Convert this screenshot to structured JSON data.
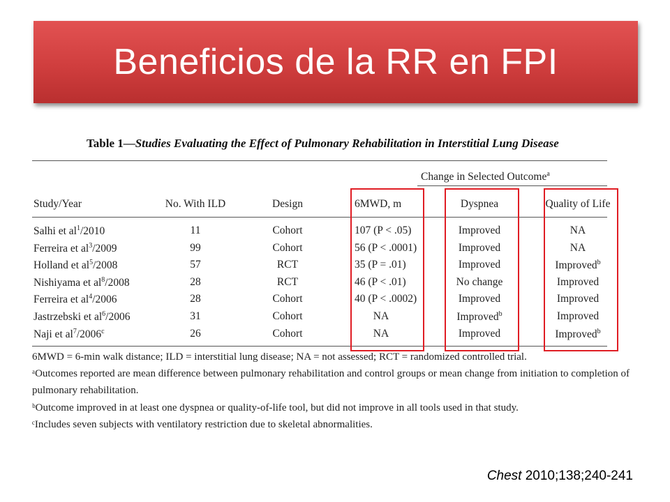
{
  "slide": {
    "title": "Beneficios de la RR en FPI",
    "accent_color": "#d43f3f",
    "highlight_color": "#e01d24"
  },
  "table": {
    "caption_prefix": "Table 1—",
    "caption_title": "Studies Evaluating the Effect of Pulmonary Rehabilitation in Interstitial Lung Disease",
    "group_header": "Change in Selected Outcome",
    "group_header_sup": "a",
    "columns": [
      "Study/Year",
      "No. With ILD",
      "Design",
      "6MWD, m",
      "Dyspnea",
      "Quality of Life"
    ],
    "rows": [
      {
        "study": "Salhi et al",
        "ref": "1",
        "year": "/2010",
        "n": "11",
        "design": "Cohort",
        "mwd": "107 (P < .05)",
        "dyspnea": "Improved",
        "dyspnea_sup": "",
        "qol": "NA",
        "qol_sup": ""
      },
      {
        "study": "Ferreira et al",
        "ref": "3",
        "year": "/2009",
        "n": "99",
        "design": "Cohort",
        "mwd": "56 (P < .0001)",
        "dyspnea": "Improved",
        "dyspnea_sup": "",
        "qol": "NA",
        "qol_sup": ""
      },
      {
        "study": "Holland et al",
        "ref": "5",
        "year": "/2008",
        "n": "57",
        "design": "RCT",
        "mwd": "35 (P = .01)",
        "dyspnea": "Improved",
        "dyspnea_sup": "",
        "qol": "Improved",
        "qol_sup": "b"
      },
      {
        "study": "Nishiyama et al",
        "ref": "8",
        "year": "/2008",
        "n": "28",
        "design": "RCT",
        "mwd": "46 (P < .01)",
        "dyspnea": "No change",
        "dyspnea_sup": "",
        "qol": "Improved",
        "qol_sup": ""
      },
      {
        "study": "Ferreira et al",
        "ref": "4",
        "year": "/2006",
        "n": "28",
        "design": "Cohort",
        "mwd": "40 (P < .0002)",
        "dyspnea": "Improved",
        "dyspnea_sup": "",
        "qol": "Improved",
        "qol_sup": ""
      },
      {
        "study": "Jastrzebski et al",
        "ref": "6",
        "year": "/2006",
        "n": "31",
        "design": "Cohort",
        "mwd": "NA",
        "dyspnea": "Improved",
        "dyspnea_sup": "b",
        "qol": "Improved",
        "qol_sup": ""
      },
      {
        "study": "Naji et al",
        "ref": "7",
        "year": "/2006",
        "year_sup": "c",
        "n": "26",
        "design": "Cohort",
        "mwd": "NA",
        "dyspnea": "Improved",
        "dyspnea_sup": "",
        "qol": "Improved",
        "qol_sup": "b"
      }
    ],
    "notes": [
      "6MWD = 6-min walk distance; ILD = interstitial lung disease; NA = not assessed; RCT = randomized controlled trial.",
      "ᵃOutcomes reported are mean difference between pulmonary rehabilitation and control groups or mean change from initiation to completion of",
      "pulmonary rehabilitation.",
      "ᵇOutcome improved in at least one dyspnea or quality-of-life tool, but did not improve in all tools used in that study.",
      "ᶜIncludes seven subjects with ventilatory restriction due to skeletal abnormalities."
    ]
  },
  "citation": {
    "journal": "Chest",
    "details": " 2010;138;240-241"
  }
}
